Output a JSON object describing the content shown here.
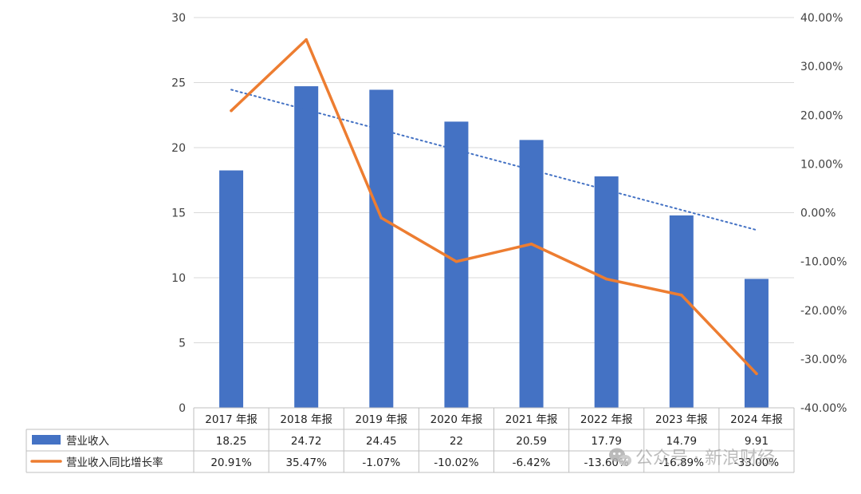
{
  "chart_data": {
    "type": "bar",
    "categories": [
      "2017 年报",
      "2018 年报",
      "2019 年报",
      "2020 年报",
      "2021 年报",
      "2022 年报",
      "2023 年报",
      "2024 年报"
    ],
    "series": [
      {
        "name": "营业收入",
        "kind": "bar",
        "axis": "left",
        "color": "#4472C4",
        "values": [
          18.25,
          24.72,
          24.45,
          22,
          20.59,
          17.79,
          14.79,
          9.91
        ],
        "display": [
          "18.25",
          "24.72",
          "24.45",
          "22",
          "20.59",
          "17.79",
          "14.79",
          "9.91"
        ]
      },
      {
        "name": "营业收入同比增长率",
        "kind": "line",
        "axis": "right",
        "color": "#ED7D31",
        "values": [
          20.91,
          35.47,
          -1.07,
          -10.02,
          -6.42,
          -13.6,
          -16.89,
          -33.0
        ],
        "display": [
          "20.91%",
          "35.47%",
          "-1.07%",
          "-10.02%",
          "-6.42%",
          "-13.60%",
          "-16.89%",
          "-33.00%"
        ]
      }
    ],
    "trendline": {
      "of": "营业收入",
      "type": "linear",
      "style": "dotted",
      "color": "#4472C4"
    },
    "y_left": {
      "ylim": [
        0,
        30
      ],
      "ticks": [
        "0",
        "5",
        "10",
        "15",
        "20",
        "25",
        "30"
      ]
    },
    "y_right": {
      "ylim": [
        -40,
        40
      ],
      "ticks": [
        "-40.00%",
        "-30.00%",
        "-20.00%",
        "-10.00%",
        "0.00%",
        "10.00%",
        "20.00%",
        "30.00%",
        "40.00%"
      ]
    },
    "grid": true,
    "legend": "data-table-bottom",
    "title": "",
    "xlabel": "",
    "ylabel": ""
  },
  "watermark": {
    "text": "公众号 · 新浪财经",
    "icon": "wechat-icon"
  }
}
